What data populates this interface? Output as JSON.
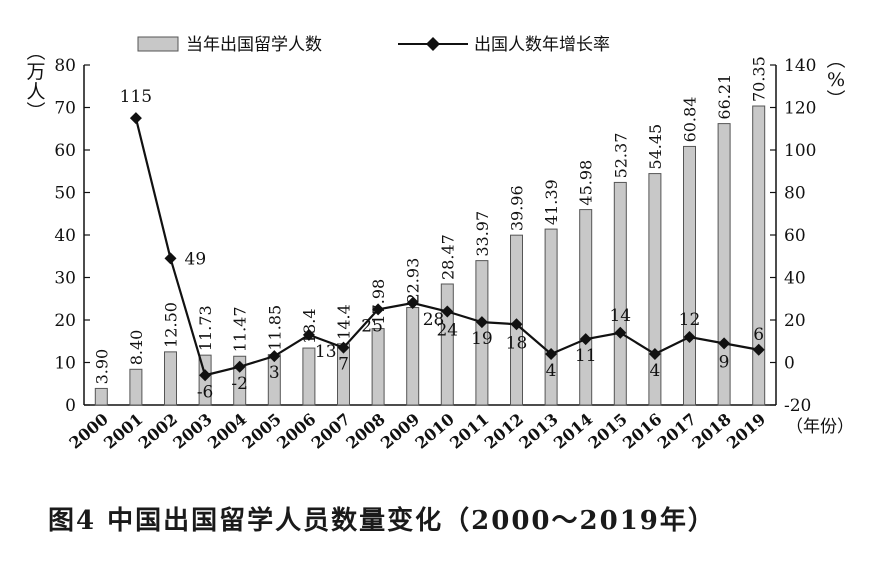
{
  "chart_data": {
    "type": "bar+line",
    "categories": [
      "2000",
      "2001",
      "2002",
      "2003",
      "2004",
      "2005",
      "2006",
      "2007",
      "2008",
      "2009",
      "2010",
      "2011",
      "2012",
      "2013",
      "2014",
      "2015",
      "2016",
      "2017",
      "2018",
      "2019"
    ],
    "series": [
      {
        "name": "当年出国留学人数",
        "type": "bar",
        "axis": "left",
        "values": [
          3.9,
          8.4,
          12.5,
          11.73,
          11.47,
          11.85,
          13.4,
          14.4,
          17.98,
          22.93,
          28.47,
          33.97,
          39.96,
          41.39,
          45.98,
          52.37,
          54.45,
          60.84,
          66.21,
          70.35
        ],
        "labels": [
          "3.90",
          "8.40",
          "12.50",
          "11.73",
          "11.47",
          "11.85",
          "13.4",
          "14.4",
          "17.98",
          "22.93",
          "28.47",
          "33.97",
          "39.96",
          "41.39",
          "45.98",
          "52.37",
          "54.45",
          "60.84",
          "66.21",
          "70.35"
        ]
      },
      {
        "name": "出国人数年增长率",
        "type": "line",
        "axis": "right",
        "x": [
          "2001",
          "2002",
          "2003",
          "2004",
          "2005",
          "2006",
          "2007",
          "2008",
          "2009",
          "2010",
          "2011",
          "2012",
          "2013",
          "2014",
          "2015",
          "2016",
          "2017",
          "2018",
          "2019"
        ],
        "values": [
          115,
          49,
          -6,
          -2,
          3,
          13,
          7,
          25,
          28,
          24,
          19,
          18,
          4,
          11,
          14,
          4,
          12,
          9,
          6
        ],
        "labels": [
          "115",
          "49",
          "-6",
          "-2",
          "3",
          "13",
          "7",
          "25",
          "28",
          "24",
          "19",
          "18",
          "4",
          "11",
          "14",
          "4",
          "12",
          "9",
          "6"
        ]
      }
    ],
    "y_left": {
      "label": "（万人）",
      "ylim": [
        0,
        80
      ],
      "ticks": [
        "0",
        "10",
        "20",
        "30",
        "40",
        "50",
        "60",
        "70",
        "80"
      ]
    },
    "y_right": {
      "label": "（%）",
      "ylim": [
        -20,
        140
      ],
      "ticks": [
        "-20",
        "0",
        "20",
        "40",
        "60",
        "80",
        "100",
        "120",
        "140"
      ]
    },
    "xlabel": "（年份）",
    "legend": "top",
    "grid": false,
    "colors": {
      "bar_fill": "#c8c8c8",
      "bar_stroke": "#555555",
      "line": "#111111"
    },
    "caption": "图4  中国出国留学人员数量变化（2000～2019年）"
  }
}
